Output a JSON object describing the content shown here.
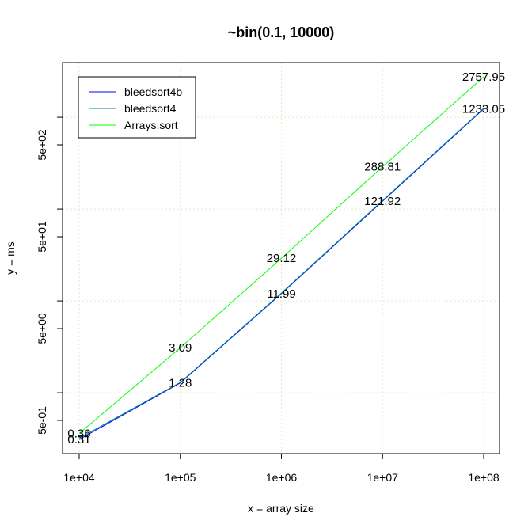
{
  "chart_data": {
    "type": "line",
    "title": "~bin(0.1, 10000)",
    "xlabel": "x = array size",
    "ylabel": "y = ms",
    "x_scale": "log",
    "y_scale": "log",
    "x": [
      10000,
      100000,
      1000000,
      10000000,
      100000000
    ],
    "x_tick_labels": [
      "1e+04",
      "1e+05",
      "1e+06",
      "1e+07",
      "1e+08"
    ],
    "y_tick_labels": [
      "5e-01",
      "5e+00",
      "5e+01",
      "5e+02"
    ],
    "grid": true,
    "legend_position": "top-left",
    "series": [
      {
        "name": "bleedsort4b",
        "color": "#0000ff",
        "values": [
          0.31,
          1.28,
          11.99,
          121.92,
          1233.05
        ],
        "labels": [
          "0.31",
          "1.28",
          "11.99",
          "121.92",
          "1233.05"
        ]
      },
      {
        "name": "bleedsort4",
        "color": "#008b8b",
        "values": [
          0.32,
          1.3,
          12.2,
          124,
          1250
        ],
        "labels": []
      },
      {
        "name": "Arrays.sort",
        "color": "#00ff00",
        "values": [
          0.36,
          3.09,
          29.12,
          288.81,
          2757.95
        ],
        "labels": [
          "0.36",
          "3.09",
          "29.12",
          "288.81",
          "2757.95"
        ]
      }
    ]
  }
}
